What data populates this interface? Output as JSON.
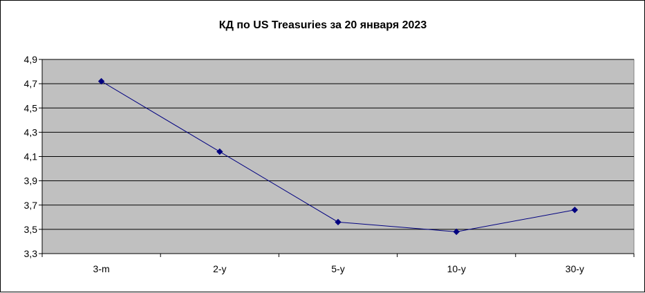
{
  "chart_data": {
    "type": "line",
    "title": "КД по US Treasuries за 20 января 2023",
    "categories": [
      "3-m",
      "2-y",
      "5-y",
      "10-y",
      "30-y"
    ],
    "series": [
      {
        "values": [
          4.72,
          4.14,
          3.56,
          3.48,
          3.66
        ],
        "color": "#000080"
      }
    ],
    "ylim": [
      3.3,
      4.9
    ],
    "yticks": [
      3.3,
      3.5,
      3.7,
      3.9,
      4.1,
      4.3,
      4.5,
      4.7,
      4.9
    ],
    "ytick_labels": [
      "3,3",
      "3,5",
      "3,7",
      "3,9",
      "4,1",
      "4,3",
      "4,5",
      "4,7",
      "4,9"
    ],
    "grid": true,
    "plot_background": "#c0c0c0",
    "xlabel": "",
    "ylabel": ""
  }
}
